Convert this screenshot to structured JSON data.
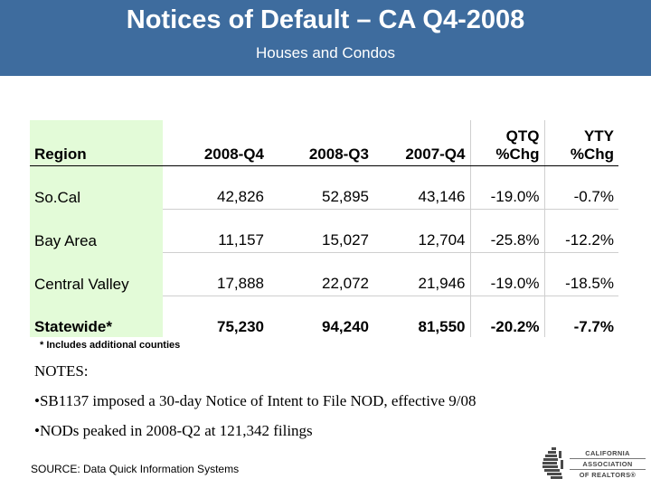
{
  "header": {
    "title": "Notices of Default – CA Q4-2008",
    "subtitle": "Houses and Condos"
  },
  "table": {
    "columns": [
      "Region",
      "2008-Q4",
      "2008-Q3",
      "2007-Q4",
      "QTQ",
      "%Chg",
      "YTY",
      "%Chg"
    ],
    "rows": [
      [
        "So.Cal",
        "42,826",
        "52,895",
        "43,146",
        "-19.0%",
        "-0.7%"
      ],
      [
        "Bay Area",
        "11,157",
        "15,027",
        "12,704",
        "-25.8%",
        "-12.2%"
      ],
      [
        "Central Valley",
        "17,888",
        "22,072",
        "21,946",
        "-19.0%",
        "-18.5%"
      ],
      [
        "Statewide*",
        "75,230",
        "94,240",
        "81,550",
        "-20.2%",
        "-7.7%"
      ]
    ]
  },
  "footnote": "* Includes additional counties",
  "notes": {
    "heading": "NOTES:",
    "items": [
      "•SB1137 imposed a 30-day Notice of Intent to File NOD, effective 9/08",
      "•NODs peaked in 2008-Q2 at 121,342 filings"
    ]
  },
  "source": "SOURCE: Data Quick Information Systems",
  "logo": {
    "lines": [
      "CALIFORNIA",
      "ASSOCIATION",
      "OF REALTORS®"
    ],
    "colors": {
      "emblem": "#4a4a4a",
      "header": "#3e6c9e",
      "region_bg": "#e3fbd8"
    }
  }
}
